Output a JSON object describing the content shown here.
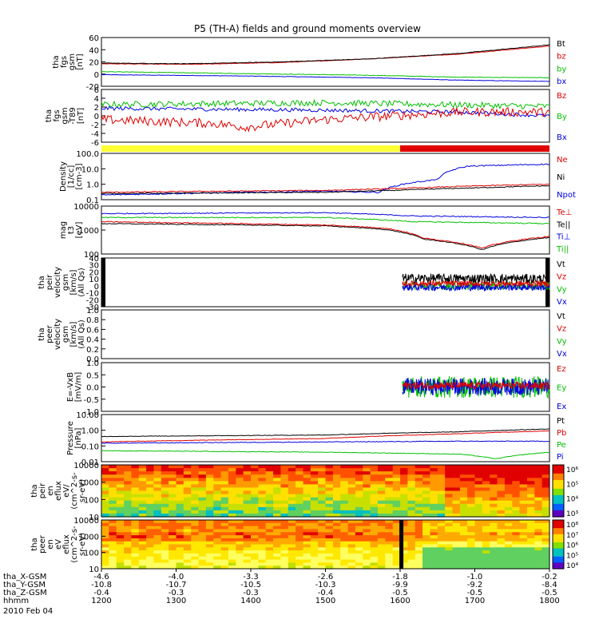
{
  "chart_data": {
    "type": "line",
    "title": "P5 (TH-A) fields and ground moments overview",
    "date_label": "2010 Feb 04",
    "x_axis": {
      "tick_times": [
        "1200",
        "1300",
        "1400",
        "1500",
        "1600",
        "1700",
        "1800"
      ],
      "rows": [
        {
          "name": "tha_X-GSM",
          "values": [
            "-4.6",
            "-4.0",
            "-3.3",
            "-2.6",
            "-1.8",
            "-1.0",
            "-0.2"
          ]
        },
        {
          "name": "tha_Y-GSM",
          "values": [
            "-10.8",
            "-10.7",
            "-10.5",
            "-10.3",
            "-9.9",
            "-9.2",
            "-8.4"
          ]
        },
        {
          "name": "tha_Z-GSM",
          "values": [
            "-0.4",
            "-0.3",
            "-0.3",
            "-0.4",
            "-0.5",
            "-0.5",
            "-0.5"
          ]
        },
        {
          "name": "hhmm",
          "values": [],
          "is_time_row": true
        }
      ]
    },
    "panels": [
      {
        "id": "fgs",
        "ylabel": [
          "tha",
          "fgs",
          "gsm",
          "[nT]"
        ],
        "ytick_labels": [
          "60",
          "40",
          "20",
          "0",
          "-20"
        ],
        "ylim": [
          -20,
          60
        ],
        "scale": "linear",
        "legend": [
          {
            "label": "Bt",
            "color": "#000000"
          },
          {
            "label": "bz",
            "color": "#e00000"
          },
          {
            "label": "by",
            "color": "#00c000"
          },
          {
            "label": "bx",
            "color": "#0000e0"
          }
        ]
      },
      {
        "id": "t89",
        "ylabel": [
          "tha",
          "fgs",
          "gsm",
          "-T89",
          "[nT]"
        ],
        "ytick_labels": [
          "6",
          "4",
          "2",
          "0",
          "-2",
          "-4",
          "-6"
        ],
        "ylim": [
          -7,
          7
        ],
        "scale": "linear",
        "legend": [
          {
            "label": "Bz",
            "color": "#e00000"
          },
          {
            "label": "By",
            "color": "#00c000"
          },
          {
            "label": "Bx",
            "color": "#0000e0"
          }
        ]
      },
      {
        "id": "density",
        "ylabel": [
          "Density",
          "[1/cc]",
          "[cm-3]"
        ],
        "ytick_labels": [
          "100.0",
          "10.0",
          "1.0",
          "0.1"
        ],
        "ylim": [
          0.1,
          100
        ],
        "scale": "log",
        "legend": [
          {
            "label": "Ne",
            "color": "#e00000"
          },
          {
            "label": "Ni",
            "color": "#000000"
          },
          {
            "label": "Npot",
            "color": "#0000e0"
          }
        ]
      },
      {
        "id": "temp",
        "ylabel": [
          "mag",
          "t3",
          "[eV]"
        ],
        "ytick_labels": [
          "10000",
          "1000",
          "100"
        ],
        "ylim": [
          30,
          10000
        ],
        "scale": "log",
        "legend": [
          {
            "label": "Te⊥",
            "color": "#e00000"
          },
          {
            "label": "Te||",
            "color": "#000000"
          },
          {
            "label": "Ti⊥",
            "color": "#0000e0"
          },
          {
            "label": "Ti||",
            "color": "#00c000"
          }
        ]
      },
      {
        "id": "peir_vel",
        "ylabel": [
          "tha",
          "peir",
          "velocity",
          "gsm",
          "[km/s]",
          "(All Qs)"
        ],
        "ytick_labels": [
          "40",
          "30",
          "20",
          "10",
          "0",
          "-10",
          "-20",
          "-30"
        ],
        "ylim": [
          -30,
          40
        ],
        "scale": "linear",
        "legend": [
          {
            "label": "Vt",
            "color": "#000000"
          },
          {
            "label": "Vz",
            "color": "#e00000"
          },
          {
            "label": "Vy",
            "color": "#00c000"
          },
          {
            "label": "Vx",
            "color": "#0000e0"
          }
        ]
      },
      {
        "id": "peer_vel",
        "ylabel": [
          "tha",
          "peer",
          "velocity",
          "gsm",
          "[km/s]",
          "(All Qs)"
        ],
        "ytick_labels": [
          "1.0",
          "0.8",
          "0.6",
          "0.4",
          "0.2",
          "0.0"
        ],
        "ylim": [
          0,
          1
        ],
        "scale": "linear",
        "legend": [
          {
            "label": "Vt",
            "color": "#000000"
          },
          {
            "label": "Vz",
            "color": "#e00000"
          },
          {
            "label": "Vy",
            "color": "#00c000"
          },
          {
            "label": "Vx",
            "color": "#0000e0"
          }
        ]
      },
      {
        "id": "efield",
        "ylabel": [
          "E=-VxB",
          "[mV/m]"
        ],
        "ytick_labels": [
          "1.0",
          "0.5",
          "0.0",
          "-0.5",
          "-1.0"
        ],
        "ylim": [
          -1,
          1
        ],
        "scale": "linear",
        "legend": [
          {
            "label": "Ez",
            "color": "#e00000"
          },
          {
            "label": "Ey",
            "color": "#00c000"
          },
          {
            "label": "Ex",
            "color": "#0000e0"
          }
        ]
      },
      {
        "id": "pressure",
        "ylabel": [
          "Pressure",
          "[nPa]"
        ],
        "ytick_labels": [
          "10.00",
          "1.00",
          "0.10",
          "0.01"
        ],
        "ylim": [
          0.01,
          10
        ],
        "scale": "log",
        "legend": [
          {
            "label": "Pt",
            "color": "#000000"
          },
          {
            "label": "Pb",
            "color": "#e00000"
          },
          {
            "label": "Pe",
            "color": "#00c000"
          },
          {
            "label": "Pi",
            "color": "#0000e0"
          }
        ]
      },
      {
        "id": "ion_spec",
        "type": "heatmap",
        "ylabel": [
          "tha",
          "peir",
          "en",
          "eflux",
          "eV/",
          "(cm^2-s-",
          "sr-eV)"
        ],
        "ytick_labels": [
          "10000",
          "1000",
          "100",
          "10"
        ],
        "ylim": [
          5,
          20000
        ],
        "scale": "log",
        "colorbar_labels": [
          "10⁶",
          "10⁵",
          "10⁴",
          "10³"
        ]
      },
      {
        "id": "elec_spec",
        "type": "heatmap",
        "ylabel": [
          "tha",
          "peer",
          "en",
          "eV",
          "eflux",
          "(cm^2-s-",
          "sr-eV)"
        ],
        "ytick_labels": [
          "10000",
          "1000",
          "100",
          "10"
        ],
        "ylim": [
          5,
          20000
        ],
        "scale": "log",
        "colorbar_labels": [
          "10⁸",
          "10⁷",
          "10⁶",
          "10⁵",
          "10⁴"
        ]
      }
    ],
    "mode_bar": [
      {
        "from": "1200",
        "to": "1600",
        "color": "#ffff33"
      },
      {
        "from": "1600",
        "to": "1800",
        "color": "#e00000"
      }
    ],
    "series_sketch": {
      "fgs_Bt": [
        [
          0,
          18
        ],
        [
          0.2,
          17
        ],
        [
          0.4,
          20
        ],
        [
          0.6,
          25
        ],
        [
          0.8,
          34
        ],
        [
          1.0,
          48
        ]
      ],
      "fgs_bz": [
        [
          0,
          17
        ],
        [
          0.2,
          16
        ],
        [
          0.4,
          19
        ],
        [
          0.6,
          25
        ],
        [
          0.8,
          33
        ],
        [
          1.0,
          46
        ]
      ],
      "fgs_by": [
        [
          0,
          4
        ],
        [
          0.2,
          2
        ],
        [
          0.4,
          0
        ],
        [
          0.6,
          -2
        ],
        [
          0.8,
          -5
        ],
        [
          1.0,
          -6
        ]
      ],
      "fgs_bx": [
        [
          0,
          -1
        ],
        [
          0.3,
          -3
        ],
        [
          0.6,
          -6
        ],
        [
          0.8,
          -10
        ],
        [
          1.0,
          -12
        ]
      ],
      "density_Ne": [
        [
          0,
          0.3
        ],
        [
          0.5,
          0.4
        ],
        [
          0.63,
          0.5
        ],
        [
          0.72,
          0.6
        ],
        [
          0.85,
          0.8
        ],
        [
          1.0,
          1.0
        ]
      ],
      "density_Ni": [
        [
          0,
          0.25
        ],
        [
          0.5,
          0.3
        ],
        [
          0.65,
          0.4
        ],
        [
          0.85,
          0.6
        ],
        [
          1.0,
          0.8
        ]
      ],
      "density_Npot": [
        [
          0,
          0.2
        ],
        [
          0.5,
          0.35
        ],
        [
          0.62,
          0.3
        ],
        [
          0.75,
          2
        ],
        [
          0.82,
          15
        ],
        [
          1.0,
          20
        ]
      ],
      "temp_Ti_perp": [
        [
          0,
          4000
        ],
        [
          0.5,
          4500
        ],
        [
          0.7,
          3000
        ],
        [
          1.0,
          2500
        ]
      ],
      "temp_Ti_par": [
        [
          0,
          2500
        ],
        [
          0.5,
          2500
        ],
        [
          0.7,
          1500
        ],
        [
          1.0,
          1200
        ]
      ],
      "temp_Te_perp": [
        [
          0,
          1500
        ],
        [
          0.5,
          1000
        ],
        [
          0.63,
          700
        ],
        [
          0.72,
          200
        ],
        [
          0.85,
          60
        ],
        [
          1.0,
          250
        ]
      ],
      "temp_Te_par": [
        [
          0,
          1200
        ],
        [
          0.5,
          900
        ],
        [
          0.63,
          600
        ],
        [
          0.72,
          180
        ],
        [
          0.85,
          50
        ],
        [
          1.0,
          220
        ]
      ],
      "pressure_Pt": [
        [
          0,
          0.4
        ],
        [
          0.5,
          0.5
        ],
        [
          0.8,
          0.8
        ],
        [
          1.0,
          1.2
        ]
      ],
      "pressure_Pb": [
        [
          0,
          0.18
        ],
        [
          0.5,
          0.3
        ],
        [
          0.8,
          0.6
        ],
        [
          1.0,
          0.9
        ]
      ],
      "pressure_Pe": [
        [
          0,
          0.05
        ],
        [
          0.5,
          0.04
        ],
        [
          0.8,
          0.03
        ],
        [
          0.88,
          0.015
        ],
        [
          1.0,
          0.04
        ]
      ],
      "pressure_Pi": [
        [
          0,
          0.15
        ],
        [
          0.5,
          0.18
        ],
        [
          0.8,
          0.2
        ],
        [
          1.0,
          0.2
        ]
      ]
    }
  }
}
